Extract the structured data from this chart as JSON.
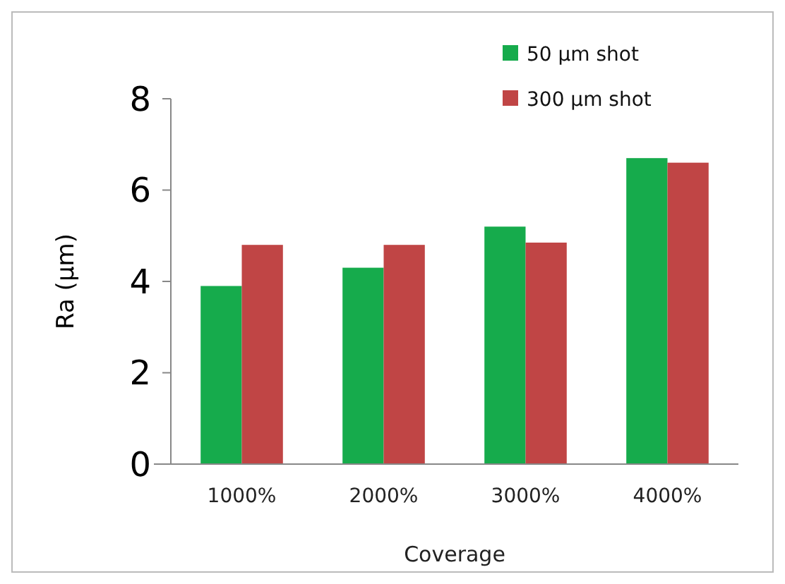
{
  "chart_data": {
    "type": "bar",
    "xlabel": "Coverage",
    "ylabel": "Ra (µm)",
    "categories": [
      "1000%",
      "2000%",
      "3000%",
      "4000%"
    ],
    "series": [
      {
        "name": "50 µm shot",
        "color": "#16ab4c",
        "values": [
          3.9,
          4.3,
          5.2,
          6.7
        ]
      },
      {
        "name": "300 µm shot",
        "color": "#c04545",
        "values": [
          4.8,
          4.8,
          4.85,
          6.6
        ]
      }
    ],
    "ylim": [
      0,
      8
    ],
    "yticks": [
      0,
      2,
      4,
      6,
      8
    ],
    "grid": false,
    "legend": "top right"
  }
}
